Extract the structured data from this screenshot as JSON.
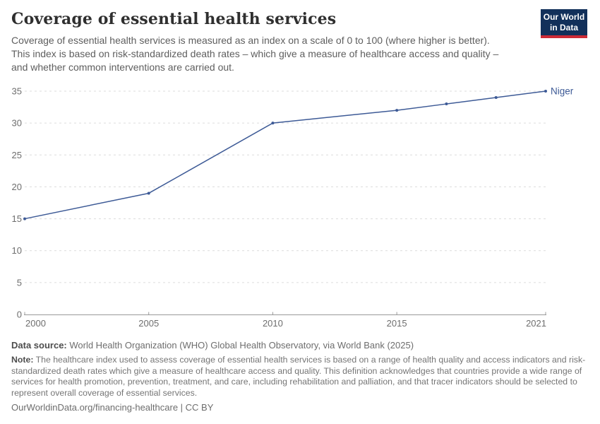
{
  "header": {
    "title": "Coverage of essential health services",
    "subtitle_lines": [
      "Coverage of essential health services is measured as an index on a scale of 0 to 100 (where higher is better).",
      "This index is based on risk-standardized death rates – which give a measure of healthcare access and quality –",
      "and whether common interventions are carried out."
    ]
  },
  "logo": {
    "line1": "Our World",
    "line2": "in Data",
    "bg_color": "#12305a",
    "bar_color": "#cc2a36"
  },
  "chart_data": {
    "type": "line",
    "title": "Coverage of essential health services",
    "xlabel": "",
    "ylabel": "",
    "xlim": [
      2000,
      2021
    ],
    "ylim": [
      0,
      35
    ],
    "x_ticks": [
      2000,
      2005,
      2010,
      2015,
      2021
    ],
    "y_ticks": [
      0,
      5,
      10,
      15,
      20,
      25,
      30,
      35
    ],
    "grid": "horizontal-dashed",
    "legend_position": "line-end-label",
    "grid_color": "#dcdcdc",
    "axis_color": "#999999",
    "tick_label_color": "#6e6e6e",
    "series": [
      {
        "name": "Niger",
        "color": "#3d5a96",
        "x": [
          2000,
          2005,
          2010,
          2015,
          2017,
          2019,
          2021
        ],
        "values": [
          15,
          19,
          30,
          32,
          33,
          34,
          35
        ]
      }
    ]
  },
  "footer": {
    "source_label": "Data source:",
    "source_text": " World Health Organization (WHO) Global Health Observatory, via World Bank (2025)",
    "note_label": "Note:",
    "note_text": " The healthcare index used to assess coverage of essential health services is based on a range of health quality and access indicators and risk-standardized death rates which give a measure of healthcare access and quality. This definition acknowledges that countries provide a wide range of services for health promotion, prevention, treatment, and care, including rehabilitation and palliation, and that tracer indicators should be selected to represent overall coverage of essential services.",
    "url_text": "OurWorldinData.org/financing-healthcare | CC BY"
  }
}
